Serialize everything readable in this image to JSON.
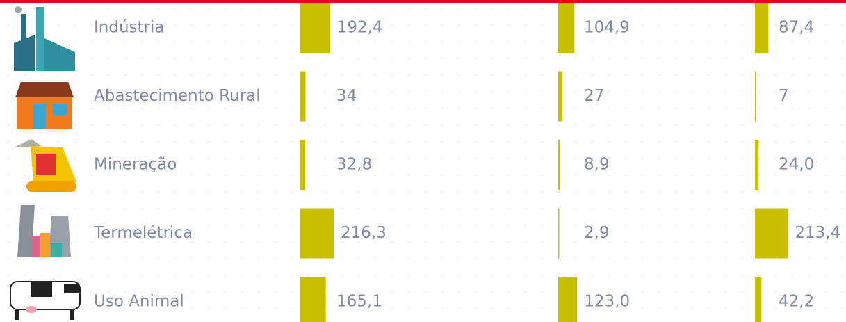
{
  "chart_data": {
    "type": "bar",
    "categories": [
      "Indústria",
      "Abastecimento Rural",
      "Mineração",
      "Termelétrica",
      "Uso Animal"
    ],
    "series": [
      {
        "color": "#c8bf00",
        "values": [
          192.4,
          34,
          32.8,
          216.3,
          165.1
        ],
        "value_labels": [
          "192,4",
          "34",
          "32,8",
          "216,3",
          "165,1"
        ]
      },
      {
        "color": "#c8bf00",
        "values": [
          104.9,
          27,
          8.9,
          2.9,
          123.0
        ],
        "value_labels": [
          "104,9",
          "27",
          "8,9",
          "2,9",
          "123,0"
        ]
      },
      {
        "color": "#c8bf00",
        "values": [
          87.4,
          7,
          24.0,
          213.4,
          42.2
        ],
        "value_labels": [
          "87,4",
          "7",
          "24,0",
          "213,4",
          "42,2"
        ]
      }
    ]
  }
}
